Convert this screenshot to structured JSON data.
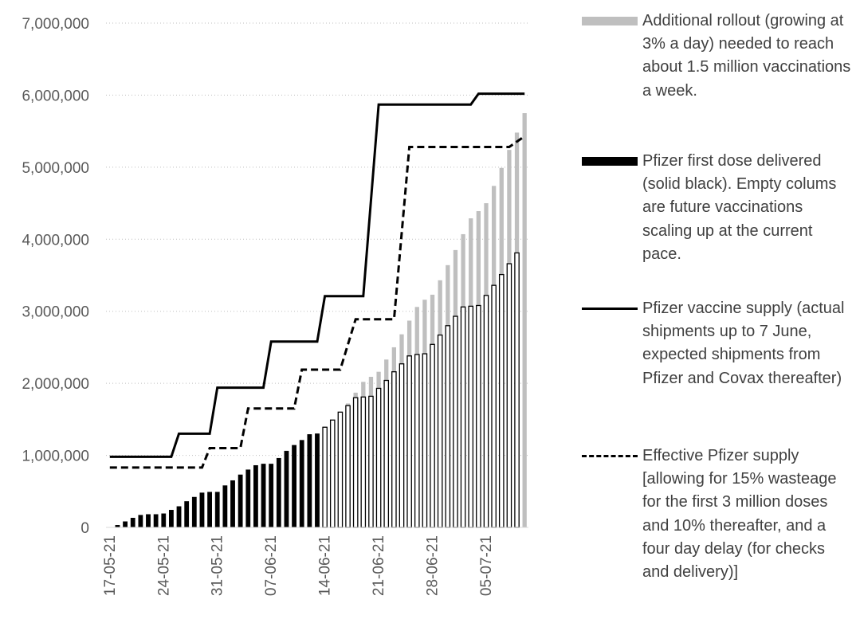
{
  "chart_data": {
    "type": "bar",
    "y_axis": {
      "min": 0,
      "max": 7000000,
      "step": 1000000,
      "tick_labels": [
        "0",
        "1,000,000",
        "2,000,000",
        "3,000,000",
        "4,000,000",
        "5,000,000",
        "6,000,000",
        "7,000,000"
      ]
    },
    "gridlines": true,
    "x_start": "2021-05-17",
    "num_days": 55,
    "x_tick_labels": [
      "17-05-21",
      "24-05-21",
      "31-05-21",
      "07-06-21",
      "14-06-21",
      "21-06-21",
      "28-06-21",
      "05-07-21"
    ],
    "x_tick_dates": [
      "2021-05-17",
      "2021-05-24",
      "2021-05-31",
      "2021-06-07",
      "2021-06-14",
      "2021-06-21",
      "2021-06-28",
      "2021-07-05"
    ],
    "series": [
      {
        "name": "Pfizer first dose delivered",
        "type": "bar",
        "color": "#000000",
        "start_date": "2021-05-18",
        "values": [
          30000,
          80000,
          130000,
          170000,
          180000,
          180000,
          190000,
          240000,
          290000,
          360000,
          420000,
          480000,
          490000,
          490000,
          580000,
          650000,
          730000,
          800000,
          860000,
          880000,
          880000,
          960000,
          1060000,
          1140000,
          1210000,
          1290000,
          1300000,
          1390000,
          1490000,
          1600000,
          1690000,
          1800000,
          1810000,
          1820000,
          1930000,
          2040000,
          2160000,
          2270000,
          2380000,
          2400000,
          2410000,
          2540000,
          2670000,
          2800000,
          2930000,
          3060000,
          3070000,
          3080000,
          3220000,
          3360000,
          3510000,
          3660000,
          3810000
        ]
      },
      {
        "name": "Additional rollout",
        "type": "bar",
        "color": "#bfbfbf",
        "start_date": "2021-06-14",
        "values": [
          1400000,
          1480000,
          1590000,
          1720000,
          1870000,
          2020000,
          2090000,
          2160000,
          2330000,
          2500000,
          2680000,
          2870000,
          3060000,
          3160000,
          3230000,
          3430000,
          3640000,
          3850000,
          4070000,
          4290000,
          4390000,
          4500000,
          4740000,
          4990000,
          5240000,
          5480000,
          5750000
        ]
      },
      {
        "name": "Pfizer vaccine supply",
        "type": "step-line",
        "color": "#000000",
        "dash": false,
        "points": [
          [
            "2021-05-17",
            980000
          ],
          [
            "2021-05-25",
            980000
          ],
          [
            "2021-05-26",
            1300000
          ],
          [
            "2021-05-30",
            1300000
          ],
          [
            "2021-05-31",
            1940000
          ],
          [
            "2021-06-06",
            1940000
          ],
          [
            "2021-06-07",
            2580000
          ],
          [
            "2021-06-13",
            2580000
          ],
          [
            "2021-06-14",
            3210000
          ],
          [
            "2021-06-19",
            3210000
          ],
          [
            "2021-06-21",
            5870000
          ],
          [
            "2021-07-03",
            5870000
          ],
          [
            "2021-07-04",
            6020000
          ],
          [
            "2021-07-10",
            6020000
          ]
        ]
      },
      {
        "name": "Effective Pfizer supply",
        "type": "step-line",
        "color": "#000000",
        "dash": true,
        "points": [
          [
            "2021-05-17",
            830000
          ],
          [
            "2021-05-29",
            830000
          ],
          [
            "2021-05-30",
            1100000
          ],
          [
            "2021-06-03",
            1100000
          ],
          [
            "2021-06-04",
            1650000
          ],
          [
            "2021-06-10",
            1650000
          ],
          [
            "2021-06-11",
            2190000
          ],
          [
            "2021-06-16",
            2190000
          ],
          [
            "2021-06-18",
            2890000
          ],
          [
            "2021-06-23",
            2890000
          ],
          [
            "2021-06-25",
            5280000
          ],
          [
            "2021-07-07",
            5280000
          ],
          [
            "2021-07-08",
            5280000
          ],
          [
            "2021-07-10",
            5430000
          ]
        ]
      }
    ]
  },
  "legend": [
    {
      "kind": "grey-bar",
      "text": "Additional rollout (growing at 3% a day) needed to reach about 1.5 million vaccinations a week."
    },
    {
      "kind": "black-bar",
      "text": "Pfizer first dose delivered (solid black). Empty colums are future vaccinations scaling up at the current pace."
    },
    {
      "kind": "solid-line",
      "text": "Pfizer vaccine supply (actual shipments up to 7 June, expected shipments from Pfizer and Covax thereafter)"
    },
    {
      "kind": "dashed-line",
      "text": "Effective Pfizer supply [allowing for 15% wasteage for the first 3 million doses and 10% thereafter, and a four day delay (for checks and delivery)]"
    }
  ]
}
